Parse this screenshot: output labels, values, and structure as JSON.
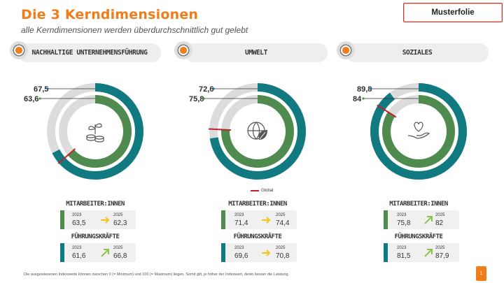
{
  "header": {
    "title": "Die 3 Kerndimensionen",
    "subtitle": "alle Kerndimensionen werden überdurchschnittlich gut gelebt",
    "badge": "Musterfolie"
  },
  "colors": {
    "accent": "#f07d1a",
    "employees": "#4f8b4f",
    "leaders": "#117a80",
    "ring_bg": "#dcdcdc",
    "global": "#c0222b"
  },
  "dimensions": [
    {
      "name": "NACHHALTIGE UNTERNEHMENSFÜHRUNG",
      "icon": "plant-coins-icon",
      "outer_value": "67,5",
      "inner_value": "63,6",
      "outer_pct": 67.5,
      "inner_pct": 63.6,
      "mitarbeiter_label": "MITARBEITER:INNEN",
      "fuehrung_label": "FÜHRUNGSKRÄFTE",
      "mitarbeiter": {
        "year_from": "2023",
        "year_to": "2025",
        "from": "63,5",
        "to": "62,3",
        "trend": "flat"
      },
      "fuehrung": {
        "year_from": "2023",
        "year_to": "2025",
        "from": "61,6",
        "to": "66,8",
        "trend": "up"
      }
    },
    {
      "name": "UMWELT",
      "icon": "globe-leaf-icon",
      "outer_value": "72,6",
      "inner_value": "75,8",
      "outer_pct": 72.6,
      "inner_pct": 75.8,
      "mitarbeiter_label": "MITARBEITER:INNEN",
      "fuehrung_label": "FÜHRUNGSKRÄFTE",
      "mitarbeiter": {
        "year_from": "2023",
        "year_to": "2025",
        "from": "71,4",
        "to": "74,4",
        "trend": "flat"
      },
      "fuehrung": {
        "year_from": "2023",
        "year_to": "2025",
        "from": "69,6",
        "to": "70,8",
        "trend": "flat"
      }
    },
    {
      "name": "SOZIALES",
      "icon": "hand-heart-icon",
      "outer_value": "89,8",
      "inner_value": "84",
      "outer_pct": 89.8,
      "inner_pct": 84,
      "mitarbeiter_label": "MITARBEITER:INNEN",
      "fuehrung_label": "FÜHRUNGSKRÄFTE",
      "mitarbeiter": {
        "year_from": "2023",
        "year_to": "2025",
        "from": "75,8",
        "to": "82",
        "trend": "up"
      },
      "fuehrung": {
        "year_from": "2023",
        "year_to": "2025",
        "from": "81,5",
        "to": "87,9",
        "trend": "up"
      }
    }
  ],
  "legend": {
    "global_label": "Global"
  },
  "footnote": "Die ausgewiesenen Indexwerte können zwischen 0 (= Minimum) und 100 (= Maximum) liegen. Somit gilt, je höher der Indexwert, desto besser die Leistung.",
  "page_number": "1"
}
